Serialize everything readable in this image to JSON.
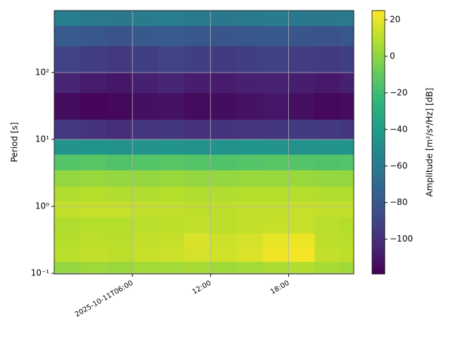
{
  "chart_data": {
    "type": "heatmap",
    "y_label": "Period [s]",
    "colorbar_label": "Amplitude [m²/s⁴/Hz] [dB]",
    "colormap": "viridis",
    "yscale": "log",
    "grid": true,
    "xlim": [
      0,
      23
    ],
    "xticks": [
      {
        "value": 6,
        "label": "2025-10-11T06:00"
      },
      {
        "value": 12,
        "label": "12:00"
      },
      {
        "value": 18,
        "label": "18:00"
      }
    ],
    "ylim": [
      0.098,
      843
    ],
    "yticks": [
      {
        "value": 0.1,
        "label": "10⁻¹"
      },
      {
        "value": 1,
        "label": "10⁰"
      },
      {
        "value": 10,
        "label": "10¹"
      },
      {
        "value": 100,
        "label": "10²"
      }
    ],
    "zlim": [
      -119,
      25
    ],
    "zticks": [
      {
        "value": 20,
        "label": "20"
      },
      {
        "value": 0,
        "label": "0"
      },
      {
        "value": -20,
        "label": "−20"
      },
      {
        "value": -40,
        "label": "−40"
      },
      {
        "value": -60,
        "label": "−60"
      },
      {
        "value": -80,
        "label": "−80"
      },
      {
        "value": -100,
        "label": "−100"
      }
    ],
    "x_edges": [
      0,
      2,
      4,
      6,
      8,
      10,
      12,
      14,
      16,
      18,
      20,
      22,
      23
    ],
    "y_edges": [
      0.098,
      0.15,
      0.25,
      0.4,
      0.7,
      1.2,
      2,
      3.5,
      6,
      10,
      20,
      50,
      100,
      250,
      500,
      843
    ],
    "z": [
      [
        2,
        4,
        3,
        5,
        5,
        6,
        4,
        5,
        7,
        8,
        6,
        4
      ],
      [
        10,
        12,
        11,
        13,
        14,
        16,
        15,
        17,
        22,
        23,
        12,
        11
      ],
      [
        9,
        11,
        10,
        12,
        13,
        17,
        14,
        16,
        20,
        21,
        11,
        10
      ],
      [
        8,
        9,
        9,
        10,
        11,
        12,
        11,
        12,
        13,
        13,
        10,
        9
      ],
      [
        12,
        13,
        13,
        12,
        12,
        11,
        11,
        12,
        12,
        13,
        12,
        12
      ],
      [
        8,
        9,
        8,
        8,
        9,
        8,
        8,
        9,
        9,
        9,
        8,
        8
      ],
      [
        2,
        3,
        2,
        2,
        3,
        2,
        2,
        3,
        3,
        3,
        2,
        2
      ],
      [
        -14,
        -13,
        -15,
        -14,
        -13,
        -14,
        -15,
        -14,
        -13,
        -14,
        -15,
        -14
      ],
      [
        -45,
        -44,
        -46,
        -45,
        -44,
        -46,
        -45,
        -44,
        -45,
        -46,
        -45,
        -44
      ],
      [
        -95,
        -98,
        -100,
        -97,
        -96,
        -99,
        -98,
        -97,
        -96,
        -94,
        -95,
        -97
      ],
      [
        -114,
        -117,
        -116,
        -113,
        -112,
        -115,
        -114,
        -112,
        -110,
        -113,
        -116,
        -115
      ],
      [
        -104,
        -108,
        -110,
        -106,
        -104,
        -107,
        -108,
        -106,
        -105,
        -107,
        -109,
        -106
      ],
      [
        -90,
        -93,
        -95,
        -92,
        -90,
        -92,
        -94,
        -92,
        -91,
        -93,
        -94,
        -92
      ],
      [
        -78,
        -80,
        -82,
        -79,
        -78,
        -80,
        -81,
        -80,
        -79,
        -81,
        -82,
        -80
      ],
      [
        -58,
        -60,
        -62,
        -59,
        -58,
        -60,
        -61,
        -60,
        -59,
        -61,
        -62,
        -60
      ]
    ]
  }
}
